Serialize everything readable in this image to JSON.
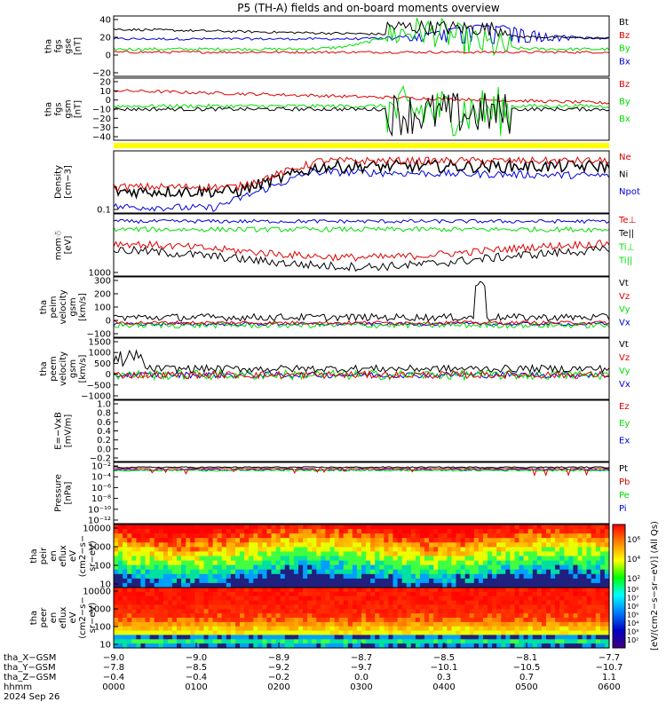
{
  "title": "P5 (TH-A) fields and on-board moments overview",
  "colors": {
    "black": "#000000",
    "red": "#e00000",
    "green": "#00e000",
    "blue": "#0000e0",
    "yellow": "#ffff00"
  },
  "chart_data": [
    {
      "type": "line",
      "name": "fgs_gse",
      "ylabel": [
        "tha",
        "fgs",
        "gse",
        "[nT]"
      ],
      "yticks": [
        "40",
        "20",
        "0",
        "−20"
      ],
      "legend": [
        "Bt",
        "Bz",
        "By",
        "Bx"
      ],
      "legend_colors": [
        "#000000",
        "#e00000",
        "#00e000",
        "#0000e0"
      ]
    },
    {
      "type": "line",
      "name": "fgs_gsm",
      "ylabel": [
        "tha",
        "fgs",
        "gsm",
        "[nT]"
      ],
      "yticks": [
        "20",
        "10",
        "0",
        "−10",
        "−20",
        "−30",
        "−40"
      ],
      "legend": [
        "Bz",
        "By",
        "Bx"
      ],
      "legend_colors": [
        "#e00000",
        "#00e000",
        "#00e000"
      ]
    },
    {
      "type": "bar",
      "name": "mode_bar"
    },
    {
      "type": "line",
      "name": "density",
      "ylabel": [
        "Density",
        "[cm−3]"
      ],
      "yticks": [
        "0.1"
      ],
      "legend": [
        "Ne",
        "Ni",
        "Npot"
      ],
      "legend_colors": [
        "#e00000",
        "#000000",
        "#0000e0"
      ]
    },
    {
      "type": "line",
      "name": "temperature",
      "ylabel": [
        "mom☃",
        "[eV]"
      ],
      "yticks": [
        "1000"
      ],
      "legend": [
        "Te⊥",
        "Te||",
        "Ti⊥",
        "Ti||"
      ],
      "legend_colors": [
        "#e00000",
        "#000000",
        "#00e000",
        "#00e000"
      ]
    },
    {
      "type": "line",
      "name": "ion_velocity",
      "ylabel": [
        "tha",
        "peim",
        "velocity",
        "gsm",
        "[km/s]"
      ],
      "yticks": [
        "300",
        "200",
        "100",
        "0",
        "−100"
      ],
      "legend": [
        "Vt",
        "Vz",
        "Vy",
        "Vx"
      ],
      "legend_colors": [
        "#000000",
        "#e00000",
        "#00e000",
        "#0000e0"
      ]
    },
    {
      "type": "line",
      "name": "electron_velocity",
      "ylabel": [
        "tha",
        "peem",
        "velocity",
        "gsm",
        "[km/s]"
      ],
      "yticks": [
        "1500",
        "1000",
        "500",
        "0",
        "−500",
        "−1000"
      ],
      "legend": [
        "Vt",
        "Vz",
        "Vy",
        "Vx"
      ],
      "legend_colors": [
        "#000000",
        "#e00000",
        "#00e000",
        "#0000e0"
      ]
    },
    {
      "type": "line",
      "name": "efield",
      "ylabel": [
        "E=−VxB",
        "[mV/m]"
      ],
      "yticks": [
        "1.0",
        "0.8",
        "0.6",
        "0.4",
        "0.2",
        "0.0",
        "−0.2"
      ],
      "legend": [
        "Ez",
        "Ey",
        "Ex"
      ],
      "legend_colors": [
        "#e00000",
        "#00e000",
        "#0000e0"
      ]
    },
    {
      "type": "line",
      "name": "pressure",
      "ylabel": [
        "Pressure",
        "[nPa]"
      ],
      "yticks": [
        "10⁻²",
        "10⁻⁴",
        "10⁻⁶",
        "10⁻⁸",
        "10⁻¹⁰",
        "10⁻¹²"
      ],
      "legend": [
        "Pt",
        "Pb",
        "Pe",
        "Pi"
      ],
      "legend_colors": [
        "#000000",
        "#e00000",
        "#00e000",
        "#0000e0"
      ]
    },
    {
      "type": "heatmap",
      "name": "ion_spectrogram",
      "ylabel": [
        "tha",
        "peir",
        "en",
        "eflux",
        "eV",
        "(cm2−s−",
        "sr−eV)"
      ],
      "yticks": [
        "10000",
        "1000",
        "100",
        "10"
      ]
    },
    {
      "type": "heatmap",
      "name": "electron_spectrogram",
      "ylabel": [
        "tha",
        "peer",
        "en",
        "eflux",
        "eV",
        "(cm2−s−",
        "sr−eV)"
      ],
      "yticks": [
        "10000",
        "1000",
        "100",
        "10"
      ]
    }
  ],
  "colorbar": {
    "label": "[eV/(cm2−s−sr−eV)] (All Qs)",
    "ticks_ion": [
      "10⁶",
      "10⁴",
      "10²"
    ],
    "ticks_ele": [
      "10⁸",
      "10⁷",
      "10⁶",
      "10⁵",
      "10⁴",
      "10³",
      "10²"
    ]
  },
  "xaxis": {
    "row_labels": [
      "tha_X−GSM",
      "tha_Y−GSM",
      "tha_Z−GSM",
      "hhmm",
      "2024 Sep 26"
    ],
    "x_gsm": [
      "−9.0",
      "−9.0",
      "−8.9",
      "−8.7",
      "−8.5",
      "−8.1",
      "−7.7"
    ],
    "y_gsm": [
      "−7.8",
      "−8.5",
      "−9.2",
      "−9.7",
      "−10.1",
      "−10.5",
      "−10.7"
    ],
    "z_gsm": [
      "−0.4",
      "−0.4",
      "−0.2",
      "0.0",
      "0.3",
      "0.7",
      "1.1"
    ],
    "hhmm": [
      "0000",
      "0100",
      "0200",
      "0300",
      "0400",
      "0500",
      "0600"
    ]
  }
}
